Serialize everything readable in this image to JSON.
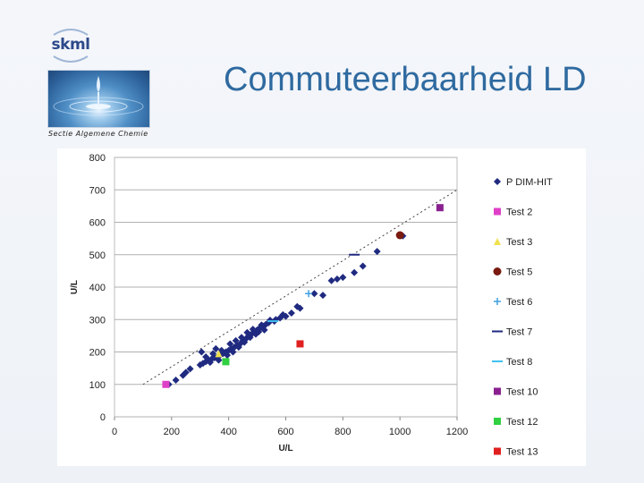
{
  "header": {
    "logo_text": "skml",
    "section_label": "Sectie Algemene Chemie",
    "title": "Commuteerbaarheid LD"
  },
  "chart_data": {
    "type": "scatter",
    "xlabel": "U/L",
    "ylabel": "U/L",
    "xlim": [
      0,
      1200
    ],
    "ylim": [
      0,
      800
    ],
    "x_ticks": [
      0,
      200,
      400,
      600,
      800,
      1000,
      1200
    ],
    "y_ticks": [
      0,
      100,
      200,
      300,
      400,
      500,
      600,
      700,
      800
    ],
    "grid": "horizontal",
    "legend_position": "right",
    "reference_line": "dotted diagonal y = x",
    "series": [
      {
        "name": "P DIM-HIT",
        "marker": "diamond",
        "color": "#1f2a80",
        "points": [
          [
            190,
            100
          ],
          [
            215,
            113
          ],
          [
            240,
            128
          ],
          [
            250,
            137
          ],
          [
            265,
            148
          ],
          [
            300,
            160
          ],
          [
            310,
            165
          ],
          [
            320,
            170
          ],
          [
            330,
            175
          ],
          [
            340,
            178
          ],
          [
            350,
            182
          ],
          [
            360,
            185
          ],
          [
            370,
            190
          ],
          [
            380,
            195
          ],
          [
            390,
            200
          ],
          [
            400,
            205
          ],
          [
            410,
            210
          ],
          [
            420,
            215
          ],
          [
            430,
            220
          ],
          [
            440,
            225
          ],
          [
            450,
            235
          ],
          [
            460,
            240
          ],
          [
            470,
            250
          ],
          [
            480,
            255
          ],
          [
            490,
            262
          ],
          [
            500,
            268
          ],
          [
            510,
            275
          ],
          [
            520,
            280
          ],
          [
            530,
            285
          ],
          [
            540,
            290
          ],
          [
            560,
            295
          ],
          [
            580,
            305
          ],
          [
            600,
            310
          ],
          [
            620,
            320
          ],
          [
            650,
            335
          ],
          [
            700,
            380
          ],
          [
            730,
            375
          ],
          [
            760,
            420
          ],
          [
            780,
            425
          ],
          [
            800,
            430
          ],
          [
            840,
            445
          ],
          [
            870,
            465
          ],
          [
            920,
            510
          ],
          [
            1000,
            560
          ],
          [
            1010,
            558
          ],
          [
            305,
            200
          ],
          [
            320,
            185
          ],
          [
            335,
            168
          ],
          [
            345,
            195
          ],
          [
            355,
            210
          ],
          [
            365,
            175
          ],
          [
            375,
            205
          ],
          [
            395,
            190
          ],
          [
            405,
            225
          ],
          [
            415,
            200
          ],
          [
            425,
            235
          ],
          [
            435,
            215
          ],
          [
            445,
            245
          ],
          [
            455,
            230
          ],
          [
            465,
            260
          ],
          [
            475,
            245
          ],
          [
            485,
            270
          ],
          [
            495,
            255
          ],
          [
            505,
            262
          ],
          [
            515,
            283
          ],
          [
            525,
            268
          ],
          [
            545,
            298
          ],
          [
            565,
            300
          ],
          [
            590,
            315
          ],
          [
            640,
            340
          ]
        ]
      },
      {
        "name": "Test 2",
        "marker": "square",
        "color": "#e040c8",
        "points": [
          [
            180,
            100
          ]
        ]
      },
      {
        "name": "Test 3",
        "marker": "triangle",
        "color": "#f0e050",
        "points": [
          [
            365,
            195
          ]
        ]
      },
      {
        "name": "Test 5",
        "marker": "circle",
        "color": "#7a1a10",
        "points": [
          [
            1000,
            560
          ]
        ]
      },
      {
        "name": "Test 6",
        "marker": "plus",
        "color": "#3fa0e0",
        "points": [
          [
            680,
            380
          ]
        ]
      },
      {
        "name": "Test 7",
        "marker": "dash",
        "color": "#1f2a80",
        "points": [
          [
            840,
            500
          ]
        ]
      },
      {
        "name": "Test 8",
        "marker": "dash",
        "color": "#40c0f0",
        "points": [
          [
            555,
            295
          ]
        ]
      },
      {
        "name": "Test 10",
        "marker": "square",
        "color": "#8a2090",
        "points": [
          [
            1140,
            645
          ]
        ]
      },
      {
        "name": "Test 12",
        "marker": "square",
        "color": "#30d040",
        "points": [
          [
            390,
            170
          ]
        ]
      },
      {
        "name": "Test 13",
        "marker": "square",
        "color": "#e02020",
        "points": [
          [
            650,
            225
          ]
        ]
      }
    ]
  }
}
